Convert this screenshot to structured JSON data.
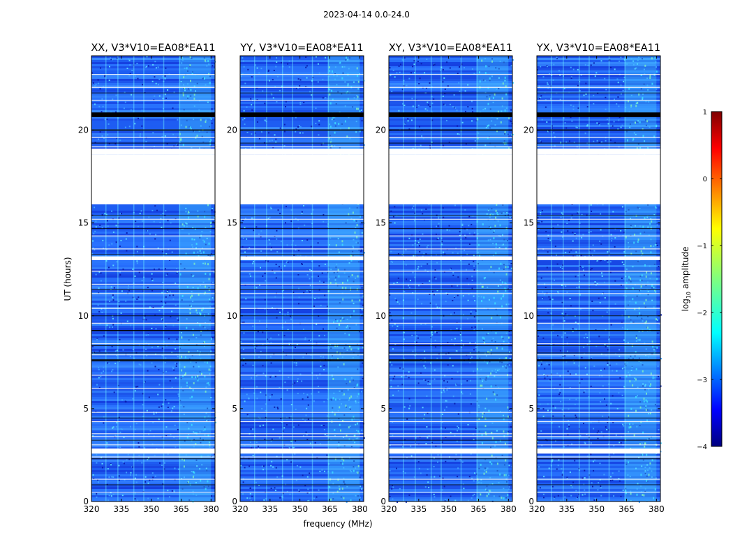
{
  "figure": {
    "suptitle": "2023-04-14 0.0-24.0"
  },
  "chart_data": {
    "type": "heatmap",
    "title": "2023-04-14 0.0-24.0",
    "xlabel": "frequency (MHz)",
    "ylabel": "UT (hours)",
    "xlim": [
      320,
      382
    ],
    "ylim": [
      0,
      24
    ],
    "xticks": [
      320,
      335,
      350,
      365,
      380
    ],
    "yticks": [
      0,
      5,
      10,
      15,
      20
    ],
    "panels": [
      {
        "title": "XX, V3*V10=EA08*EA11"
      },
      {
        "title": "YY, V3*V10=EA08*EA11"
      },
      {
        "title": "XY, V3*V10=EA08*EA11"
      },
      {
        "title": "YX, V3*V10=EA08*EA11"
      }
    ],
    "missing_ut_range": [
      16.0,
      18.7
    ],
    "bright_frequency_band_mhz": [
      364,
      380
    ],
    "colorbar": {
      "label": "log10 amplitude",
      "range": [
        -4,
        1
      ],
      "ticks": [
        1,
        0,
        -1,
        -2,
        -3,
        -4
      ],
      "tick_labels": [
        "1",
        "0",
        "−1",
        "−2",
        "−3",
        "−4"
      ],
      "colormap": "jet"
    }
  }
}
